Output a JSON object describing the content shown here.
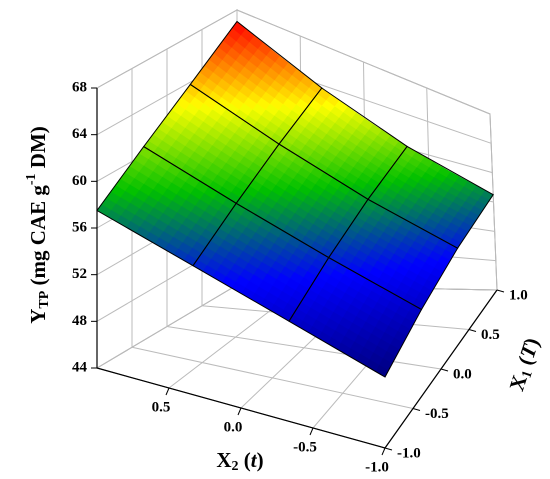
{
  "chart_data": {
    "type": "surface3d",
    "x_name": [
      "X",
      "2",
      " (",
      "t",
      ")"
    ],
    "y_name": [
      "X",
      "1",
      " (",
      "T",
      ")"
    ],
    "z_name": [
      "Y",
      "TP",
      " (mg CAE g",
      "-1",
      " DM)"
    ],
    "x": [
      -1,
      -0.333,
      0.333,
      1
    ],
    "y": [
      -1,
      -0.333,
      0.333,
      1
    ],
    "z": [
      [
        50.0,
        52.3,
        54.7,
        57.0
      ],
      [
        52.5,
        55.1,
        57.7,
        60.3
      ],
      [
        55.0,
        57.9,
        60.8,
        63.7
      ],
      [
        57.5,
        60.7,
        63.8,
        67.0
      ]
    ],
    "xlim": [
      -1,
      1
    ],
    "ylim": [
      -1,
      1
    ],
    "zlim": [
      44,
      68
    ],
    "xticks": [
      {
        "value": 0.5,
        "label": "0.5"
      },
      {
        "value": 0,
        "label": "0.0"
      },
      {
        "value": -0.5,
        "label": "-0.5"
      },
      {
        "value": -1,
        "label": "-1.0"
      }
    ],
    "yticks": [
      {
        "value": -1,
        "label": "-1.0"
      },
      {
        "value": -0.5,
        "label": "-0.5"
      },
      {
        "value": 0,
        "label": "0.0"
      },
      {
        "value": 0.5,
        "label": "0.5"
      },
      {
        "value": 1,
        "label": "1.0"
      }
    ],
    "zticks": [
      44,
      48,
      52,
      56,
      60,
      64,
      68
    ],
    "grid": true,
    "colormap": [
      "#00007f",
      "#0000ff",
      "#00c000",
      "#ffff00",
      "#ff0000"
    ]
  }
}
